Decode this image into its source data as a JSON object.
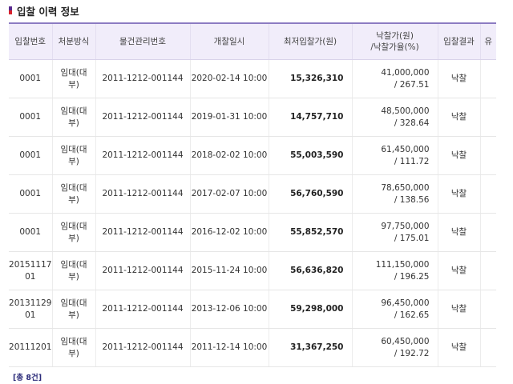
{
  "section": {
    "title": "입찰 이력 정보"
  },
  "table": {
    "headers": {
      "bid_no": "입찰번호",
      "disposal": "처분방식",
      "item_no": "물건관리번호",
      "open_date": "개찰일시",
      "min_price": "최저입찰가(원)",
      "win_price_l1": "낙찰가(원)",
      "win_price_l2": "/낙찰가율(%)",
      "result": "입찰결과",
      "extra": "유"
    },
    "rows": [
      {
        "bid_no": "0001",
        "disposal": "임대(대부)",
        "item_no": "2011-1212-001144",
        "open_date": "2020-02-14 10:00",
        "min_price": "15,326,310",
        "win_price": "41,000,000",
        "win_rate": "/ 267.51",
        "result": "낙찰"
      },
      {
        "bid_no": "0001",
        "disposal": "임대(대부)",
        "item_no": "2011-1212-001144",
        "open_date": "2019-01-31 10:00",
        "min_price": "14,757,710",
        "win_price": "48,500,000",
        "win_rate": "/ 328.64",
        "result": "낙찰"
      },
      {
        "bid_no": "0001",
        "disposal": "임대(대부)",
        "item_no": "2011-1212-001144",
        "open_date": "2018-02-02 10:00",
        "min_price": "55,003,590",
        "win_price": "61,450,000",
        "win_rate": "/ 111.72",
        "result": "낙찰"
      },
      {
        "bid_no": "0001",
        "disposal": "임대(대부)",
        "item_no": "2011-1212-001144",
        "open_date": "2017-02-07 10:00",
        "min_price": "56,760,590",
        "win_price": "78,650,000",
        "win_rate": "/ 138.56",
        "result": "낙찰"
      },
      {
        "bid_no": "0001",
        "disposal": "임대(대부)",
        "item_no": "2011-1212-001144",
        "open_date": "2016-12-02 10:00",
        "min_price": "55,852,570",
        "win_price": "97,750,000",
        "win_rate": "/ 175.01",
        "result": "낙찰"
      },
      {
        "bid_no": "2015111701",
        "disposal": "임대(대부)",
        "item_no": "2011-1212-001144",
        "open_date": "2015-11-24 10:00",
        "min_price": "56,636,820",
        "win_price": "111,150,000",
        "win_rate": "/ 196.25",
        "result": "낙찰"
      },
      {
        "bid_no": "2013112901",
        "disposal": "임대(대부)",
        "item_no": "2011-1212-001144",
        "open_date": "2013-12-06 10:00",
        "min_price": "59,298,000",
        "win_price": "96,450,000",
        "win_rate": "/ 162.65",
        "result": "낙찰"
      },
      {
        "bid_no": "20111201",
        "disposal": "임대(대부)",
        "item_no": "2011-1212-001144",
        "open_date": "2011-12-14 10:00",
        "min_price": "31,367,250",
        "win_price": "60,450,000",
        "win_rate": "/ 192.72",
        "result": "낙찰"
      }
    ]
  },
  "footer": {
    "total": "[총 8건]"
  },
  "colors": {
    "header_bg": "#f1edfa",
    "header_top_border": "#8c7bc2",
    "marker_top": "#5a2a8f",
    "marker_bottom": "#d9232d"
  }
}
